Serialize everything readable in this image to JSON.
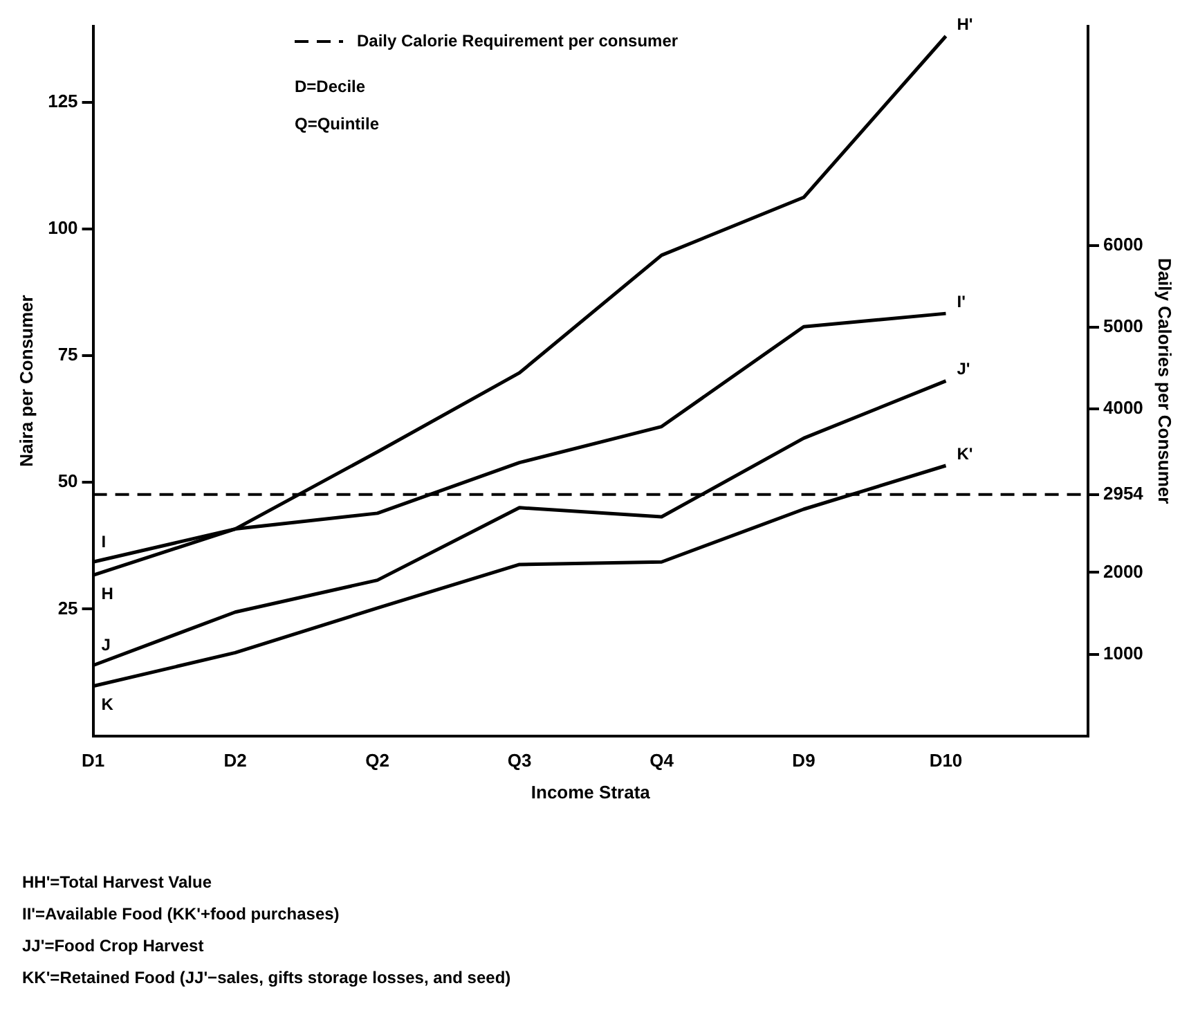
{
  "chart_data": {
    "type": "line",
    "categories": [
      "D1",
      "D2",
      "Q2",
      "Q3",
      "Q4",
      "D9",
      "D10",
      null
    ],
    "series": [
      {
        "color": "#000000",
        "values": [
          31.7,
          40.8,
          56,
          71.6,
          94.8,
          106.2,
          138,
          null
        ]
      },
      {
        "color": "#000000",
        "values": [
          34.3,
          40.8,
          43.9,
          53.9,
          61,
          80.7,
          83.3,
          null
        ]
      },
      {
        "color": "#000000",
        "values": [
          13.9,
          24.4,
          30.7,
          45,
          43.2,
          58.7,
          70,
          null
        ]
      },
      {
        "color": "#000000",
        "values": [
          9.8,
          16.4,
          25.2,
          33.8,
          34.3,
          44.7,
          53.3,
          null
        ]
      }
    ],
    "xlabel": "Income Strata",
    "ylabel": "Naira per Consumer",
    "y2label": "Daily Calories per Consumer",
    "ylim": [
      0,
      140
    ],
    "yticks": [
      25,
      50,
      75,
      100,
      125
    ],
    "y2lim": [
      0,
      8690
    ],
    "y2ticks": [
      1000,
      2000,
      2954,
      4000,
      5000,
      6000
    ],
    "ref_lines": [
      {
        "axis": "y2",
        "value": 2954,
        "label": "Daily Calorie Requirement per consumer",
        "color": "#000000",
        "line_style": "dashed"
      }
    ],
    "grid": false,
    "legend": "top",
    "marker": "none",
    "line_style": "solid",
    "annotations": [
      {
        "text": "H",
        "x": "D1",
        "y": 31.7
      },
      {
        "text": "H'",
        "x": "D10",
        "y": 138
      },
      {
        "text": "I",
        "x": "D1",
        "y": 34.3
      },
      {
        "text": "I'",
        "x": "D10",
        "y": 83.3
      },
      {
        "text": "J",
        "x": "D1",
        "y": 13.9
      },
      {
        "text": "J'",
        "x": "D10",
        "y": 70
      },
      {
        "text": "K",
        "x": "D1",
        "y": 9.8
      },
      {
        "text": "K'",
        "x": "D10",
        "y": 53.3
      },
      "D=Decile",
      "Q=Quintile",
      "HH'=Total Harvest Value",
      "II'=Available Food (KK'+food purchases)",
      "JJ'=Food Crop Harvest",
      "KK'=Retained Food (JJ'−sales, gifts storage losses, and seed)"
    ]
  }
}
